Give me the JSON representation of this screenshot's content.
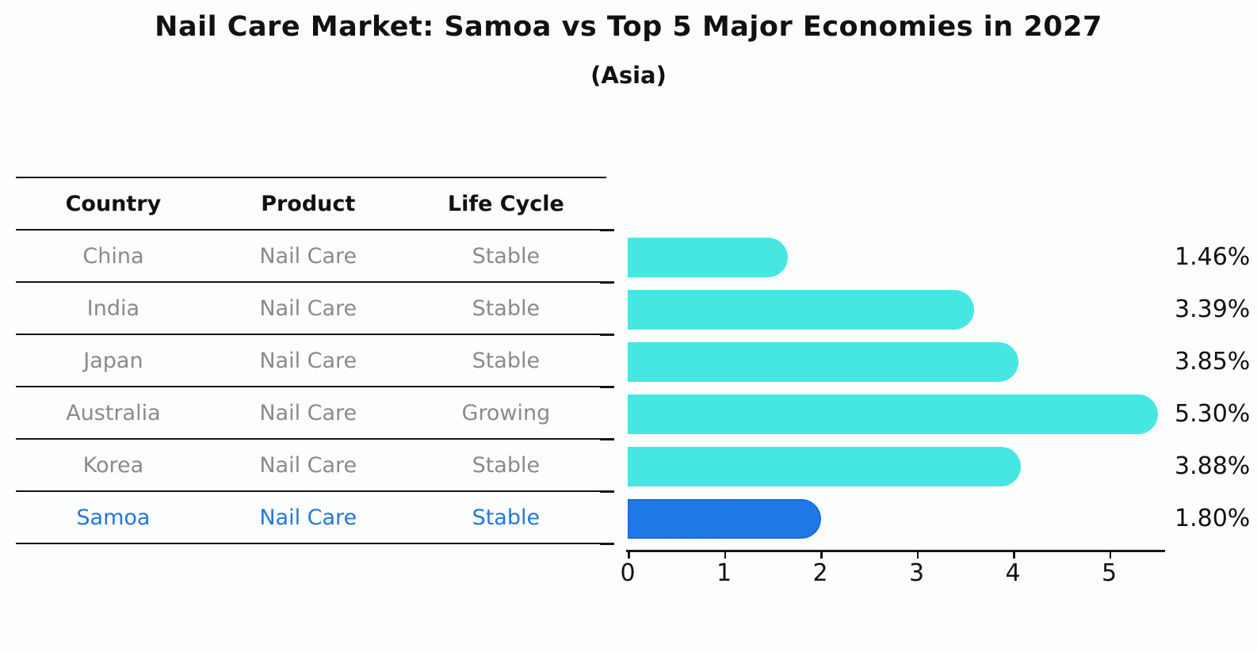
{
  "title": "Nail Care Market: Samoa vs Top 5 Major Economies in 2027",
  "subtitle": "(Asia)",
  "table": {
    "headers": [
      "Country",
      "Product",
      "Life Cycle"
    ],
    "rows": [
      {
        "country": "China",
        "product": "Nail Care",
        "life_cycle": "Stable",
        "highlight": false
      },
      {
        "country": "India",
        "product": "Nail Care",
        "life_cycle": "Stable",
        "highlight": false
      },
      {
        "country": "Japan",
        "product": "Nail Care",
        "life_cycle": "Stable",
        "highlight": false
      },
      {
        "country": "Australia",
        "product": "Nail Care",
        "life_cycle": "Growing",
        "highlight": false
      },
      {
        "country": "Korea",
        "product": "Nail Care",
        "life_cycle": "Stable",
        "highlight": false
      },
      {
        "country": "Samoa",
        "product": "Nail Care",
        "life_cycle": "Stable",
        "highlight": true
      }
    ]
  },
  "chart_data": {
    "type": "bar",
    "orientation": "horizontal",
    "title": "Nail Care Market: Samoa vs Top 5 Major Economies in 2027",
    "subtitle": "(Asia)",
    "categories": [
      "China",
      "India",
      "Japan",
      "Australia",
      "Korea",
      "Samoa"
    ],
    "values": [
      1.46,
      3.39,
      3.85,
      5.3,
      3.88,
      1.8
    ],
    "value_labels": [
      "1.46%",
      "3.39%",
      "3.85%",
      "5.30%",
      "3.88%",
      "1.80%"
    ],
    "xlim": [
      0,
      5.6
    ],
    "x_ticks": [
      0,
      1,
      2,
      3,
      4,
      5
    ],
    "grid": false,
    "legend": false,
    "highlight_index": 5,
    "bar_style": "rounded-right-cap, highlighted bar has dotted edge"
  },
  "colors": {
    "bar": "#46E6E2",
    "highlight_bar": "#1E78E6",
    "highlight_bar_edge": "#1565CC",
    "highlight_text": "#2278DC",
    "row_text": "#8A8A8A",
    "header_text": "#111111",
    "axis": "#161616"
  }
}
